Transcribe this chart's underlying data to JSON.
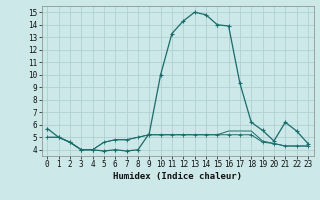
{
  "xlabel": "Humidex (Indice chaleur)",
  "background_color": "#cce8e8",
  "grid_color": "#b0d0d0",
  "line_color": "#1a6b6b",
  "x_values": [
    0,
    1,
    2,
    3,
    4,
    5,
    6,
    7,
    8,
    9,
    10,
    11,
    12,
    13,
    14,
    15,
    16,
    17,
    18,
    19,
    20,
    21,
    22,
    23
  ],
  "line1_y": [
    5.7,
    5.0,
    4.6,
    4.0,
    4.0,
    3.9,
    4.0,
    3.9,
    4.0,
    5.3,
    10.0,
    13.3,
    14.3,
    15.0,
    14.8,
    14.0,
    13.9,
    9.3,
    6.2,
    5.55,
    4.7,
    6.2,
    5.5,
    4.5
  ],
  "line2_y": [
    5.0,
    5.0,
    4.6,
    4.0,
    4.0,
    4.6,
    4.8,
    4.8,
    5.0,
    5.2,
    5.2,
    5.2,
    5.2,
    5.2,
    5.2,
    5.2,
    5.2,
    5.2,
    5.2,
    4.6,
    4.5,
    4.3,
    4.3,
    4.3
  ],
  "line3_y": [
    5.0,
    5.0,
    4.6,
    4.0,
    4.0,
    4.6,
    4.8,
    4.8,
    5.0,
    5.2,
    5.2,
    5.2,
    5.2,
    5.2,
    5.2,
    5.2,
    5.5,
    5.5,
    5.5,
    4.7,
    4.5,
    4.3,
    4.3,
    4.3
  ],
  "ylim": [
    3.5,
    15.5
  ],
  "xlim": [
    -0.5,
    23.5
  ],
  "yticks": [
    4,
    5,
    6,
    7,
    8,
    9,
    10,
    11,
    12,
    13,
    14,
    15
  ],
  "xticks": [
    0,
    1,
    2,
    3,
    4,
    5,
    6,
    7,
    8,
    9,
    10,
    11,
    12,
    13,
    14,
    15,
    16,
    17,
    18,
    19,
    20,
    21,
    22,
    23
  ],
  "tick_fontsize": 5.5,
  "xlabel_fontsize": 6.5
}
